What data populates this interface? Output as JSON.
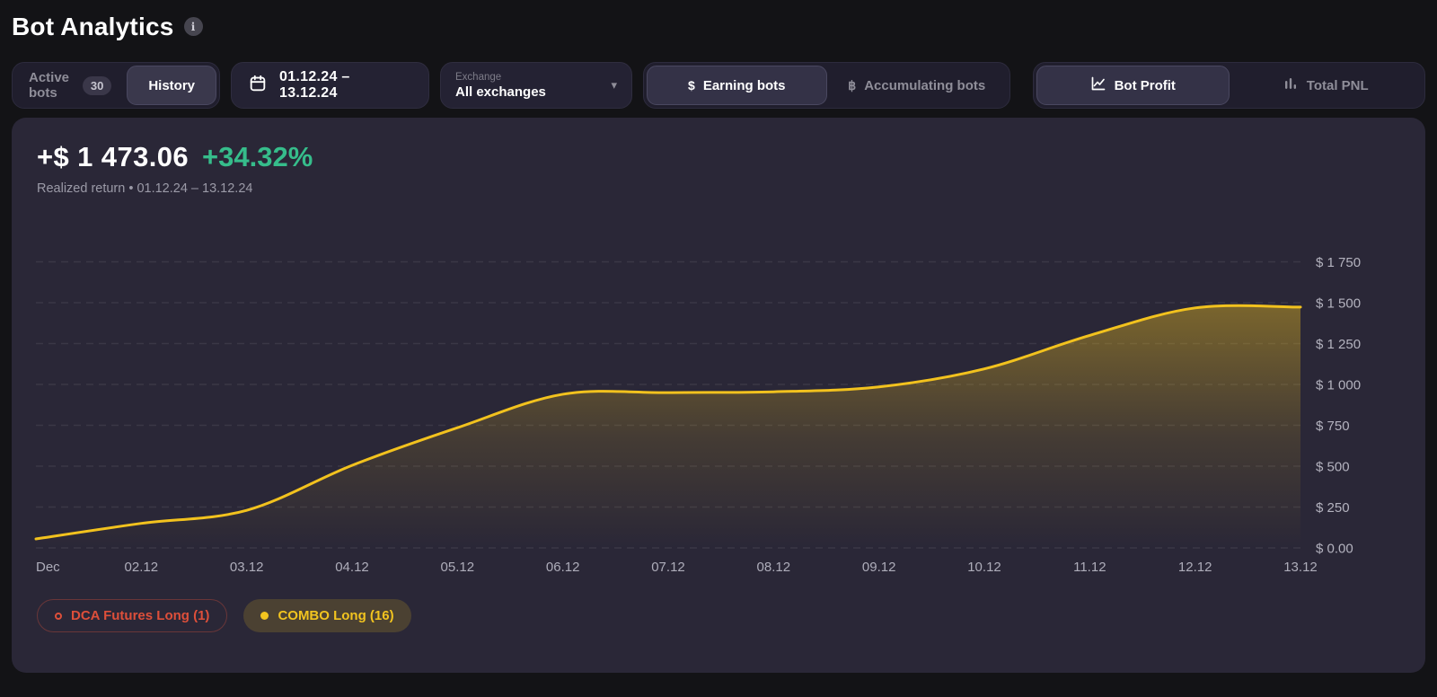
{
  "page": {
    "title": "Bot Analytics"
  },
  "icons": {
    "info": "i",
    "dollar": "$",
    "bitcoin": "฿",
    "chevron_down": "▾"
  },
  "toolbar": {
    "bots_tabs": {
      "active_label": "Active bots",
      "active_count": "30",
      "history_label": "History"
    },
    "date_range": {
      "value": "01.12.24 – 13.12.24"
    },
    "exchange": {
      "label": "Exchange",
      "value": "All exchanges"
    },
    "category_toggle": {
      "options": [
        {
          "label": "Earning bots",
          "selected": true
        },
        {
          "label": "Accumulating bots",
          "selected": false
        }
      ]
    },
    "view_toggle": {
      "options": [
        {
          "label": "Bot Profit",
          "selected": true
        },
        {
          "label": "Total PNL",
          "selected": false
        }
      ]
    }
  },
  "summary": {
    "amount": "+$ 1 473.06",
    "percent": "+34.32%",
    "subtitle": "Realized return • 01.12.24 – 13.12.24"
  },
  "chart_data": {
    "type": "area",
    "title": "Bot Profit",
    "series": [
      {
        "name": "COMBO Long (16)",
        "color": "#f2c21e",
        "x": [
          "01.12",
          "02.12",
          "03.12",
          "04.12",
          "05.12",
          "06.12",
          "07.12",
          "08.12",
          "09.12",
          "10.12",
          "11.12",
          "12.12",
          "13.12"
        ],
        "values": [
          55,
          150,
          230,
          505,
          735,
          940,
          950,
          955,
          985,
          1095,
          1300,
          1468,
          1473.06
        ]
      }
    ],
    "x_tick_labels": [
      "Dec",
      "02.12",
      "03.12",
      "04.12",
      "05.12",
      "06.12",
      "07.12",
      "08.12",
      "09.12",
      "10.12",
      "11.12",
      "12.12",
      "13.12"
    ],
    "y_ticks": [
      0,
      250,
      500,
      750,
      1000,
      1250,
      1500,
      1750
    ],
    "y_tick_labels": [
      "$ 0.00",
      "$ 250",
      "$ 500",
      "$ 750",
      "$ 1 000",
      "$ 1 250",
      "$ 1 500",
      "$ 1 750"
    ],
    "ylim": [
      0,
      1750
    ],
    "grid": "dashed-horizontal",
    "y_axis_side": "right",
    "legend_position": "bottom"
  },
  "legend": {
    "items": [
      {
        "label": "DCA Futures Long (1)",
        "color": "#dd4f3a",
        "active": false
      },
      {
        "label": "COMBO Long (16)",
        "color": "#f2c41f",
        "active": true
      }
    ]
  },
  "colors": {
    "page_bg": "#131316",
    "panel_bg": "#2a2737",
    "accent_yellow": "#f2c21e",
    "positive_green": "#36bd8b",
    "inactive_red": "#dd4f3a",
    "grid_line": "rgba(255,255,255,0.08)",
    "axis_text": "#b4b3bf"
  }
}
